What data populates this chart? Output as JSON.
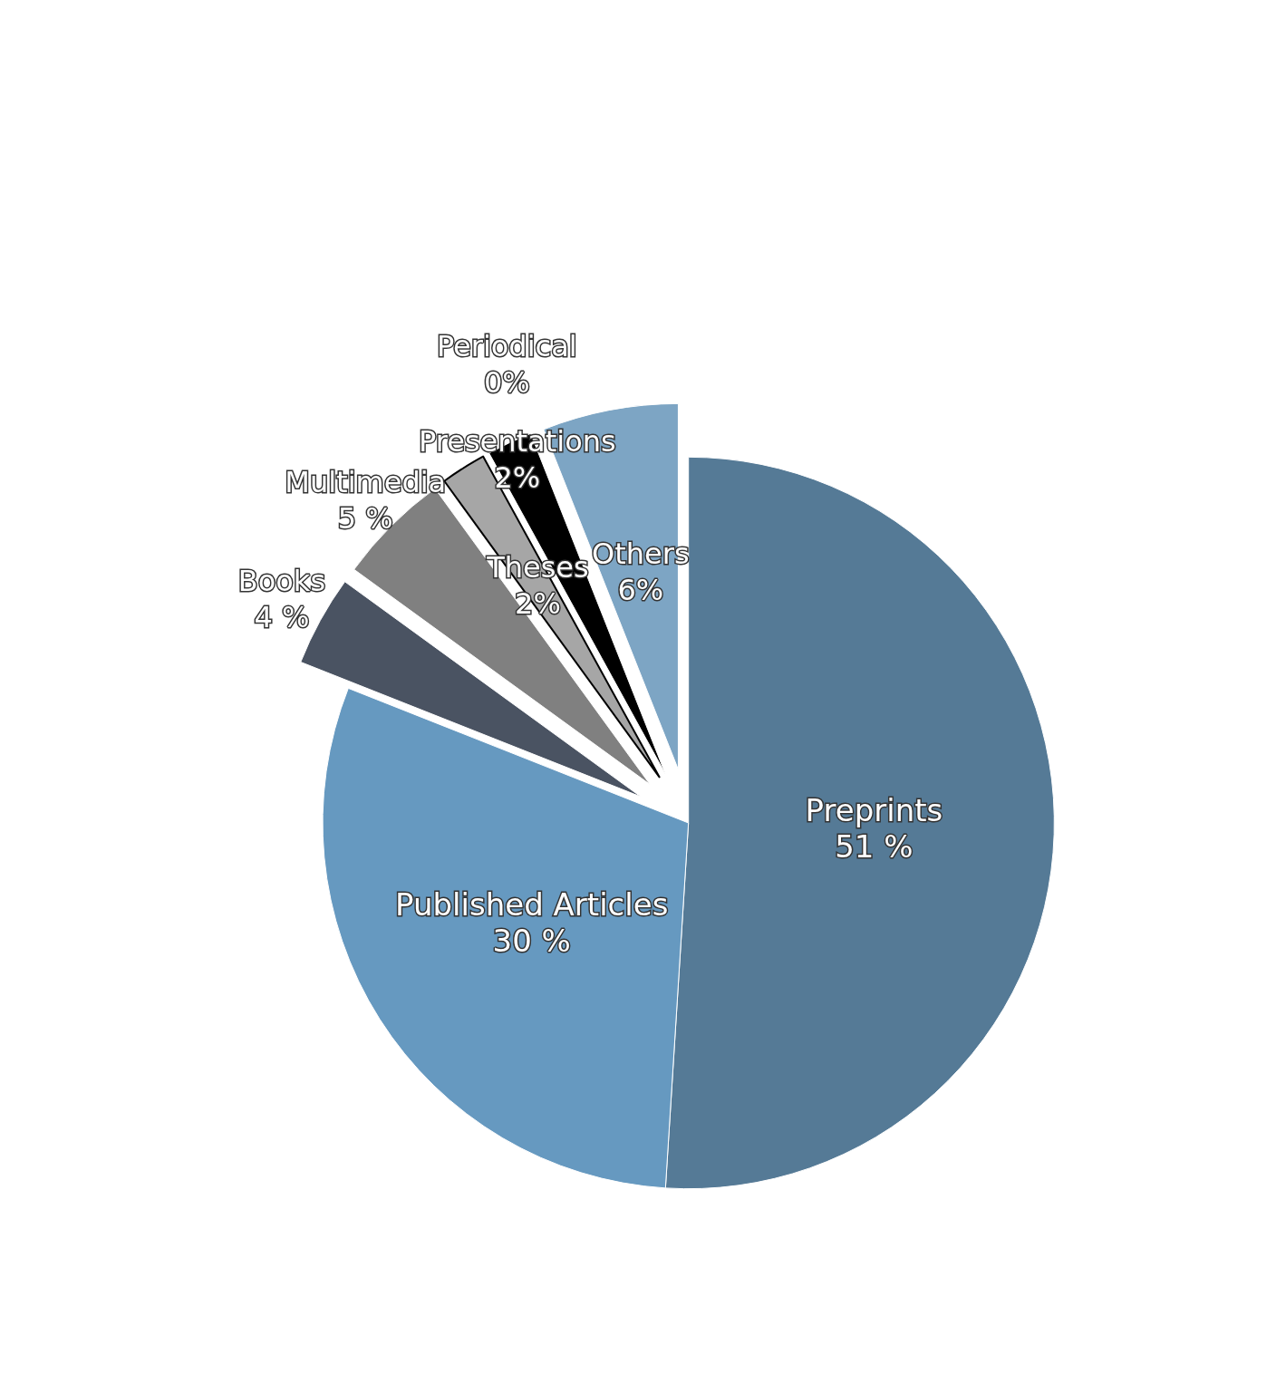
{
  "chart_data": {
    "type": "pie",
    "categories": [
      "Preprints",
      "Published Articles",
      "Books",
      "Multimedia",
      "Theses",
      "Presentations",
      "Periodical",
      "Others"
    ],
    "values": [
      51,
      30,
      4,
      5,
      2,
      2,
      0,
      6
    ],
    "value_labels": [
      "51 %",
      "30 %",
      "4 %",
      "5 %",
      "2%",
      "2%",
      "0%",
      "6%"
    ],
    "colors": [
      "#557a96",
      "#6699c0",
      "#4a5362",
      "#808080",
      "#a6a6a6",
      "#000000",
      "#5f8aaa",
      "#7da5c4"
    ],
    "legend": false
  }
}
